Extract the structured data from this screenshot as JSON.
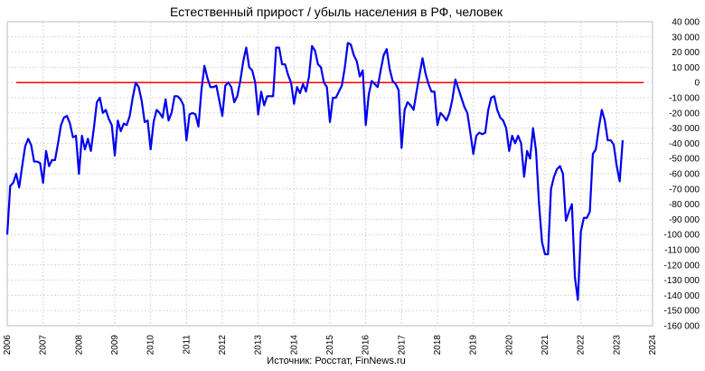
{
  "chart_data": {
    "type": "line",
    "title": "Естественный прирост / убыль населения в РФ, человек",
    "source": "Источник: Росстат, FinNews.ru",
    "xlabel": "",
    "ylabel": "",
    "x_tick_labels": [
      "2006",
      "2007",
      "2008",
      "2009",
      "2010",
      "2011",
      "2012",
      "2013",
      "2014",
      "2015",
      "2016",
      "2017",
      "2018",
      "2019",
      "2020",
      "2021",
      "2022",
      "2023",
      "2024"
    ],
    "y_tick_labels": [
      "40 000",
      "30 000",
      "20 000",
      "10 000",
      "0",
      "-10 000",
      "-20 000",
      "-30 000",
      "-40 000",
      "-50 000",
      "-60 000",
      "-70 000",
      "-80 000",
      "-90 000",
      "-100 000",
      "-110 000",
      "-120 000",
      "-130 000",
      "-140 000",
      "-150 000",
      "-160 000"
    ],
    "xlim": [
      2006,
      2024
    ],
    "ylim": [
      -160000,
      40000
    ],
    "y_axis_position": "right",
    "grid": true,
    "reference_line": {
      "y": 0,
      "color": "#ff0000"
    },
    "series": [
      {
        "color": "#0000ee",
        "start": "2006-01",
        "frequency": "monthly",
        "values": [
          -100000,
          -68000,
          -66000,
          -60000,
          -69000,
          -55000,
          -42000,
          -37000,
          -41000,
          -52000,
          -52000,
          -53000,
          -66000,
          -45000,
          -55000,
          -51000,
          -51000,
          -40000,
          -28000,
          -23000,
          -22000,
          -27000,
          -36000,
          -35000,
          -60000,
          -35000,
          -44000,
          -37000,
          -45000,
          -30000,
          -13000,
          -10000,
          -20000,
          -18000,
          -24000,
          -28000,
          -48000,
          -25000,
          -32000,
          -27000,
          -28000,
          -22000,
          -10000,
          0,
          -3000,
          -12000,
          -26000,
          -25000,
          -44000,
          -26000,
          -18000,
          -20000,
          -23000,
          -11000,
          -25000,
          -20000,
          -9000,
          -9000,
          -11000,
          -15000,
          -38000,
          -21000,
          -20000,
          -21000,
          -29000,
          -5000,
          11000,
          3000,
          -3000,
          -3000,
          -2000,
          -12000,
          -22000,
          -2000,
          0,
          -3000,
          -13000,
          -9000,
          1000,
          14000,
          23000,
          10000,
          8000,
          0,
          -21000,
          -6000,
          -15000,
          -9000,
          -9000,
          -9000,
          23000,
          23000,
          12000,
          12000,
          5000,
          0,
          -14000,
          -3000,
          -7000,
          -1000,
          -6000,
          4000,
          24000,
          21000,
          12000,
          10000,
          0,
          -3000,
          -26000,
          -10000,
          -10000,
          -6000,
          -2000,
          10000,
          26000,
          25000,
          18000,
          14000,
          4000,
          8000,
          -28000,
          -8000,
          1000,
          -1000,
          -3000,
          8000,
          18000,
          22000,
          9000,
          1000,
          -1000,
          -5000,
          -43000,
          -18000,
          -13000,
          -15000,
          -18000,
          -6000,
          5000,
          16000,
          6000,
          -1000,
          -6000,
          -6000,
          -28000,
          -20000,
          -22000,
          -25000,
          -20000,
          -11000,
          2000,
          -4000,
          -10000,
          -16000,
          -20000,
          -33000,
          -47000,
          -35000,
          -33000,
          -34000,
          -33000,
          -18000,
          -10000,
          -9000,
          -18000,
          -23000,
          -25000,
          -30000,
          -45000,
          -35000,
          -40000,
          -35000,
          -40000,
          -62000,
          -45000,
          -50000,
          -30000,
          -45000,
          -80000,
          -105000,
          -113000,
          -113000,
          -70000,
          -62000,
          -57000,
          -55000,
          -60000,
          -91000,
          -85000,
          -80000,
          -128000,
          -143000,
          -98000,
          -89000,
          -89000,
          -85000,
          -47000,
          -44000,
          -30000,
          -18000,
          -25000,
          -38000,
          -38000,
          -41000,
          -55000,
          -65000,
          -38000
        ]
      }
    ]
  }
}
